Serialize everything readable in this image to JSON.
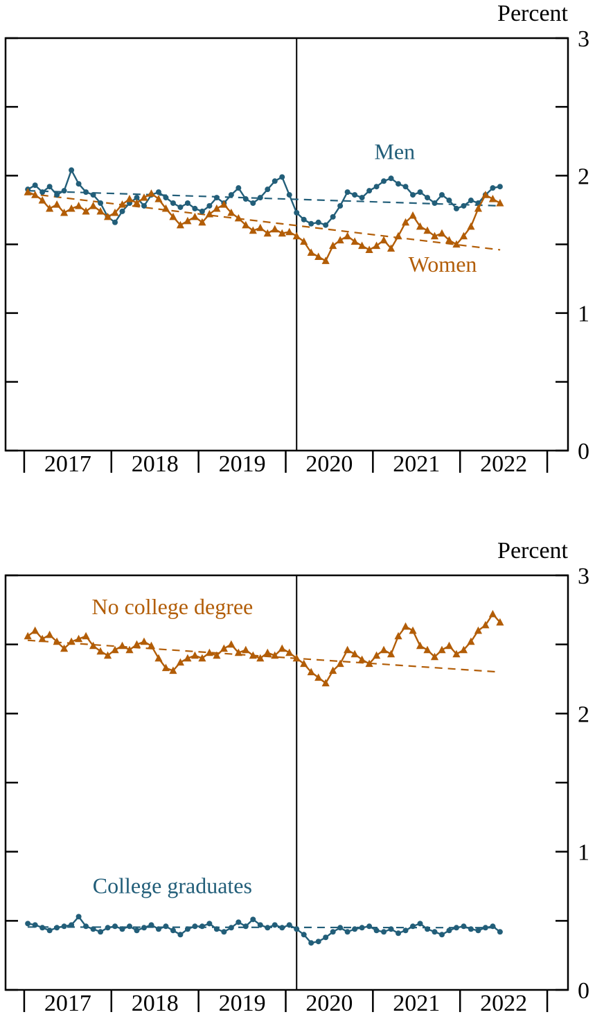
{
  "page": {
    "background": "#ffffff",
    "text_color": "#000000"
  },
  "colors": {
    "blue": "#225e79",
    "orange": "#b25d07",
    "axis": "#000000"
  },
  "chart_data": [
    {
      "type": "line",
      "panel": "top",
      "ylabel": "Percent",
      "ylim": [
        0,
        3
      ],
      "ytick_major": [
        0,
        1,
        2,
        3
      ],
      "ytick_minor": [
        0.5,
        1.5,
        2.5
      ],
      "x_domain": [
        2016.786,
        2023.238
      ],
      "x_tick_years": [
        2017,
        2018,
        2019,
        2020,
        2021,
        2022,
        2023
      ],
      "x_year_labels": [
        "2017",
        "2018",
        "2019",
        "2020",
        "2021",
        "2022"
      ],
      "x_monthly_start": "2017-01",
      "vline_x": 2020.125,
      "grid": false,
      "legend_position": "inline-annotations",
      "series": [
        {
          "name": "Men",
          "color": "#225e79",
          "marker": "circle",
          "label": {
            "text": "Men",
            "x": 2021.25,
            "y": 2.12
          },
          "values": [
            1.9,
            1.93,
            1.88,
            1.92,
            1.86,
            1.89,
            2.04,
            1.94,
            1.88,
            1.86,
            1.8,
            1.7,
            1.66,
            1.74,
            1.8,
            1.84,
            1.78,
            1.86,
            1.88,
            1.84,
            1.8,
            1.77,
            1.8,
            1.76,
            1.74,
            1.78,
            1.84,
            1.8,
            1.86,
            1.91,
            1.83,
            1.8,
            1.84,
            1.9,
            1.96,
            1.99,
            1.86,
            1.73,
            1.68,
            1.65,
            1.66,
            1.64,
            1.7,
            1.78,
            1.88,
            1.86,
            1.84,
            1.89,
            1.92,
            1.96,
            1.98,
            1.94,
            1.92,
            1.86,
            1.88,
            1.84,
            1.8,
            1.86,
            1.82,
            1.76,
            1.78,
            1.82,
            1.8,
            1.86,
            1.91,
            1.92
          ]
        },
        {
          "name": "Women",
          "color": "#b25d07",
          "marker": "triangle",
          "label": {
            "text": "Women",
            "x": 2021.8,
            "y": 1.3
          },
          "values": [
            1.88,
            1.86,
            1.82,
            1.76,
            1.79,
            1.73,
            1.76,
            1.78,
            1.74,
            1.78,
            1.74,
            1.7,
            1.73,
            1.79,
            1.83,
            1.8,
            1.84,
            1.87,
            1.83,
            1.76,
            1.7,
            1.64,
            1.67,
            1.7,
            1.66,
            1.72,
            1.76,
            1.79,
            1.73,
            1.69,
            1.64,
            1.6,
            1.62,
            1.58,
            1.61,
            1.58,
            1.59,
            1.56,
            1.52,
            1.44,
            1.41,
            1.38,
            1.49,
            1.53,
            1.56,
            1.52,
            1.49,
            1.46,
            1.49,
            1.53,
            1.47,
            1.56,
            1.66,
            1.71,
            1.63,
            1.6,
            1.56,
            1.58,
            1.53,
            1.5,
            1.56,
            1.63,
            1.76,
            1.86,
            1.83,
            1.8
          ]
        }
      ],
      "trend_lines": [
        {
          "series": "Men",
          "color": "#225e79",
          "x1": 2017.04,
          "y1": 1.89,
          "x2": 2022.46,
          "y2": 1.78
        },
        {
          "series": "Women",
          "color": "#b25d07",
          "x1": 2017.04,
          "y1": 1.87,
          "x2": 2022.46,
          "y2": 1.46
        }
      ]
    },
    {
      "type": "line",
      "panel": "bottom",
      "ylabel": "Percent",
      "ylim": [
        0,
        3
      ],
      "ytick_major": [
        0,
        1,
        2,
        3
      ],
      "ytick_minor": [
        0.5,
        1.5,
        2.5
      ],
      "x_domain": [
        2016.786,
        2023.238
      ],
      "x_tick_years": [
        2017,
        2018,
        2019,
        2020,
        2021,
        2022,
        2023
      ],
      "x_year_labels": [
        "2017",
        "2018",
        "2019",
        "2020",
        "2021",
        "2022"
      ],
      "x_monthly_start": "2017-01",
      "vline_x": 2020.125,
      "grid": false,
      "legend_position": "inline-annotations",
      "series": [
        {
          "name": "No college degree",
          "color": "#b25d07",
          "marker": "triangle",
          "label": {
            "text": "No college degree",
            "x": 2018.7,
            "y": 2.72
          },
          "values": [
            2.56,
            2.6,
            2.54,
            2.57,
            2.52,
            2.47,
            2.52,
            2.54,
            2.56,
            2.49,
            2.45,
            2.42,
            2.46,
            2.49,
            2.46,
            2.5,
            2.52,
            2.49,
            2.4,
            2.33,
            2.31,
            2.37,
            2.4,
            2.42,
            2.4,
            2.44,
            2.42,
            2.47,
            2.5,
            2.44,
            2.46,
            2.42,
            2.4,
            2.44,
            2.42,
            2.47,
            2.44,
            2.4,
            2.36,
            2.3,
            2.26,
            2.22,
            2.31,
            2.36,
            2.46,
            2.43,
            2.39,
            2.36,
            2.42,
            2.46,
            2.43,
            2.56,
            2.63,
            2.6,
            2.49,
            2.46,
            2.41,
            2.46,
            2.49,
            2.43,
            2.46,
            2.52,
            2.6,
            2.64,
            2.72,
            2.66
          ]
        },
        {
          "name": "College graduates",
          "color": "#225e79",
          "marker": "circle",
          "label": {
            "text": "College graduates",
            "x": 2018.7,
            "y": 0.7
          },
          "values": [
            0.48,
            0.47,
            0.45,
            0.43,
            0.45,
            0.46,
            0.47,
            0.53,
            0.46,
            0.44,
            0.42,
            0.45,
            0.46,
            0.44,
            0.46,
            0.43,
            0.45,
            0.47,
            0.44,
            0.46,
            0.43,
            0.4,
            0.44,
            0.46,
            0.46,
            0.48,
            0.44,
            0.42,
            0.45,
            0.49,
            0.46,
            0.51,
            0.47,
            0.45,
            0.47,
            0.45,
            0.47,
            0.44,
            0.4,
            0.34,
            0.35,
            0.38,
            0.42,
            0.45,
            0.42,
            0.44,
            0.45,
            0.46,
            0.43,
            0.42,
            0.44,
            0.41,
            0.43,
            0.46,
            0.48,
            0.44,
            0.42,
            0.4,
            0.43,
            0.45,
            0.46,
            0.44,
            0.43,
            0.45,
            0.46,
            0.42
          ]
        }
      ],
      "trend_lines": [
        {
          "series": "No college degree",
          "color": "#b25d07",
          "x1": 2017.04,
          "y1": 2.53,
          "x2": 2022.46,
          "y2": 2.3
        },
        {
          "series": "College graduates",
          "color": "#225e79",
          "x1": 2017.04,
          "y1": 0.455,
          "x2": 2022.46,
          "y2": 0.45
        }
      ]
    }
  ]
}
